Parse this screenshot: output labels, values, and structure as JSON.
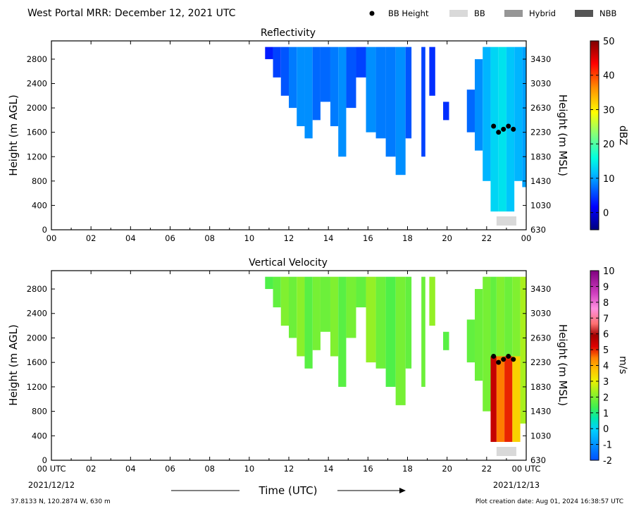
{
  "header": {
    "title": "West Portal MRR:  December 12, 2021 UTC"
  },
  "legend": [
    {
      "label": "BB Height",
      "kind": "dot",
      "color": "#000000"
    },
    {
      "label": "BB",
      "kind": "box",
      "color": "#d9d9d9"
    },
    {
      "label": "Hybrid",
      "kind": "box",
      "color": "#969696"
    },
    {
      "label": "NBB",
      "kind": "box",
      "color": "#555555"
    }
  ],
  "footer": {
    "location": "37.8133 N, 120.2874 W, 630 m",
    "creation": "Plot creation date: Aug 01, 2024 16:38:57 UTC",
    "time_axis": "Time (UTC)",
    "start_date": "2021/12/12",
    "end_date": "2021/12/13"
  },
  "chart_data": [
    {
      "type": "heatmap",
      "title": "Reflectivity",
      "ylabel": "Height (m AGL)",
      "y2label": "Height (m MSL)",
      "xlim": [
        0,
        24
      ],
      "ylim": [
        0,
        3100
      ],
      "x_ticks": [
        "00",
        "02",
        "04",
        "06",
        "08",
        "10",
        "12",
        "14",
        "16",
        "18",
        "20",
        "22",
        "00"
      ],
      "y_ticks": [
        0,
        400,
        800,
        1200,
        1600,
        2000,
        2400,
        2800
      ],
      "y2_ticks": [
        630,
        1030,
        1430,
        1830,
        2230,
        2630,
        3030,
        3430
      ],
      "colorbar": {
        "label": "dBZ",
        "min": -5,
        "max": 50,
        "ticks": [
          0,
          10,
          20,
          30,
          40,
          50
        ],
        "colormap": "jet"
      },
      "bb_height_points": [
        {
          "x": 22.35,
          "y": 1700
        },
        {
          "x": 22.6,
          "y": 1600
        },
        {
          "x": 22.85,
          "y": 1650
        },
        {
          "x": 23.1,
          "y": 1700
        },
        {
          "x": 23.35,
          "y": 1650
        }
      ],
      "bb_period": {
        "x": [
          22.5,
          23.5
        ],
        "category": "BB"
      },
      "echo_segments": [
        {
          "x": [
            10.8,
            11.2
          ],
          "ytop": 3000,
          "ybot": 2800,
          "level": 3
        },
        {
          "x": [
            11.2,
            11.6
          ],
          "ytop": 3000,
          "ybot": 2500,
          "level": 5
        },
        {
          "x": [
            11.6,
            12.0
          ],
          "ytop": 3000,
          "ybot": 2200,
          "level": 6
        },
        {
          "x": [
            12.0,
            12.4
          ],
          "ytop": 3000,
          "ybot": 2000,
          "level": 8
        },
        {
          "x": [
            12.4,
            12.8
          ],
          "ytop": 3000,
          "ybot": 1700,
          "level": 9
        },
        {
          "x": [
            12.8,
            13.2
          ],
          "ytop": 3000,
          "ybot": 1500,
          "level": 9
        },
        {
          "x": [
            13.2,
            13.6
          ],
          "ytop": 3000,
          "ybot": 1800,
          "level": 7
        },
        {
          "x": [
            13.6,
            14.1
          ],
          "ytop": 3000,
          "ybot": 2100,
          "level": 7
        },
        {
          "x": [
            14.1,
            14.5
          ],
          "ytop": 3000,
          "ybot": 1700,
          "level": 8
        },
        {
          "x": [
            14.5,
            14.9
          ],
          "ytop": 3000,
          "ybot": 1200,
          "level": 9
        },
        {
          "x": [
            14.9,
            15.4
          ],
          "ytop": 3000,
          "ybot": 2000,
          "level": 6
        },
        {
          "x": [
            15.4,
            15.9
          ],
          "ytop": 3000,
          "ybot": 2500,
          "level": 5
        },
        {
          "x": [
            15.9,
            16.4
          ],
          "ytop": 3000,
          "ybot": 1600,
          "level": 9
        },
        {
          "x": [
            16.4,
            16.9
          ],
          "ytop": 3000,
          "ybot": 1500,
          "level": 8
        },
        {
          "x": [
            16.9,
            17.4
          ],
          "ytop": 3000,
          "ybot": 1200,
          "level": 8
        },
        {
          "x": [
            17.4,
            17.9
          ],
          "ytop": 3000,
          "ybot": 900,
          "level": 9
        },
        {
          "x": [
            17.9,
            18.2
          ],
          "ytop": 3000,
          "ybot": 1500,
          "level": 6
        },
        {
          "x": [
            18.7,
            18.9
          ],
          "ytop": 3000,
          "ybot": 1200,
          "level": 5
        },
        {
          "x": [
            19.1,
            19.4
          ],
          "ytop": 3000,
          "ybot": 2200,
          "level": 4
        },
        {
          "x": [
            19.8,
            20.1
          ],
          "ytop": 2100,
          "ybot": 1800,
          "level": 4
        },
        {
          "x": [
            21.0,
            21.4
          ],
          "ytop": 2300,
          "ybot": 1600,
          "level": 7
        },
        {
          "x": [
            21.4,
            21.8
          ],
          "ytop": 2800,
          "ybot": 1300,
          "level": 9
        },
        {
          "x": [
            21.8,
            22.2
          ],
          "ytop": 3000,
          "ybot": 800,
          "level": 11
        },
        {
          "x": [
            22.2,
            22.6
          ],
          "ytop": 3000,
          "ybot": 300,
          "level": 13
        },
        {
          "x": [
            22.6,
            23.0
          ],
          "ytop": 3000,
          "ybot": 300,
          "level": 14
        },
        {
          "x": [
            23.0,
            23.4
          ],
          "ytop": 3000,
          "ybot": 300,
          "level": 12
        },
        {
          "x": [
            23.4,
            23.8
          ],
          "ytop": 3000,
          "ybot": 800,
          "level": 11
        },
        {
          "x": [
            23.8,
            24.0
          ],
          "ytop": 3000,
          "ybot": 700,
          "level": 10
        }
      ]
    },
    {
      "type": "heatmap",
      "title": "Vertical Velocity",
      "ylabel": "Height (m AGL)",
      "y2label": "Height (m MSL)",
      "xlim": [
        0,
        24
      ],
      "ylim": [
        0,
        3100
      ],
      "x_ticks": [
        "00 UTC",
        "02",
        "04",
        "06",
        "08",
        "10",
        "12",
        "14",
        "16",
        "18",
        "20",
        "22",
        "00 UTC"
      ],
      "y_ticks": [
        0,
        400,
        800,
        1200,
        1600,
        2000,
        2400,
        2800
      ],
      "y2_ticks": [
        630,
        1030,
        1430,
        1830,
        2230,
        2630,
        3030,
        3430
      ],
      "colorbar": {
        "label": "m/s",
        "min": -2,
        "max": 10,
        "ticks": [
          -2,
          -1,
          0,
          1,
          2,
          3,
          4,
          5,
          6,
          7,
          8,
          9,
          10
        ],
        "colormap": "velocity"
      },
      "bb_height_points": [
        {
          "x": 22.35,
          "y": 1700
        },
        {
          "x": 22.6,
          "y": 1600
        },
        {
          "x": 22.85,
          "y": 1650
        },
        {
          "x": 23.1,
          "y": 1700
        },
        {
          "x": 23.35,
          "y": 1650
        }
      ],
      "bb_period": {
        "x": [
          22.5,
          23.5
        ],
        "category": "BB"
      },
      "echo_segments": [
        {
          "x": [
            10.8,
            11.2
          ],
          "ytop": 3000,
          "ybot": 2800,
          "level": 1.5
        },
        {
          "x": [
            11.2,
            11.6
          ],
          "ytop": 3000,
          "ybot": 2500,
          "level": 1.7
        },
        {
          "x": [
            11.6,
            12.0
          ],
          "ytop": 3000,
          "ybot": 2200,
          "level": 2.0
        },
        {
          "x": [
            12.0,
            12.4
          ],
          "ytop": 3000,
          "ybot": 2000,
          "level": 1.8
        },
        {
          "x": [
            12.4,
            12.8
          ],
          "ytop": 3000,
          "ybot": 1700,
          "level": 2.1
        },
        {
          "x": [
            12.8,
            13.2
          ],
          "ytop": 3000,
          "ybot": 1500,
          "level": 1.6
        },
        {
          "x": [
            13.2,
            13.6
          ],
          "ytop": 3000,
          "ybot": 1800,
          "level": 1.9
        },
        {
          "x": [
            13.6,
            14.1
          ],
          "ytop": 3000,
          "ybot": 2100,
          "level": 1.8
        },
        {
          "x": [
            14.1,
            14.5
          ],
          "ytop": 3000,
          "ybot": 1700,
          "level": 2.0
        },
        {
          "x": [
            14.5,
            14.9
          ],
          "ytop": 3000,
          "ybot": 1200,
          "level": 1.6
        },
        {
          "x": [
            14.9,
            15.4
          ],
          "ytop": 3000,
          "ybot": 2000,
          "level": 1.9
        },
        {
          "x": [
            15.4,
            15.9
          ],
          "ytop": 3000,
          "ybot": 2500,
          "level": 1.7
        },
        {
          "x": [
            15.9,
            16.4
          ],
          "ytop": 3000,
          "ybot": 1600,
          "level": 2.2
        },
        {
          "x": [
            16.4,
            16.9
          ],
          "ytop": 3000,
          "ybot": 1500,
          "level": 1.8
        },
        {
          "x": [
            16.9,
            17.4
          ],
          "ytop": 3000,
          "ybot": 1200,
          "level": 1.5
        },
        {
          "x": [
            17.4,
            17.9
          ],
          "ytop": 3000,
          "ybot": 900,
          "level": 1.9
        },
        {
          "x": [
            17.9,
            18.2
          ],
          "ytop": 3000,
          "ybot": 1500,
          "level": 1.7
        },
        {
          "x": [
            18.7,
            18.9
          ],
          "ytop": 3000,
          "ybot": 1200,
          "level": 1.8
        },
        {
          "x": [
            19.1,
            19.4
          ],
          "ytop": 3000,
          "ybot": 2200,
          "level": 2.2
        },
        {
          "x": [
            19.8,
            20.1
          ],
          "ytop": 2100,
          "ybot": 1800,
          "level": 1.6
        },
        {
          "x": [
            21.0,
            21.4
          ],
          "ytop": 2300,
          "ybot": 1600,
          "level": 1.7
        },
        {
          "x": [
            21.4,
            21.8
          ],
          "ytop": 2800,
          "ybot": 1300,
          "level": 1.8
        },
        {
          "x": [
            21.8,
            22.2
          ],
          "ytop": 3000,
          "ybot": 800,
          "level": 1.9
        },
        {
          "x": [
            22.2,
            22.5
          ],
          "ytop": 3000,
          "ybot": 1700,
          "level": 1.7
        },
        {
          "x": [
            22.2,
            22.5
          ],
          "ytop": 1700,
          "ybot": 300,
          "level": 5.5
        },
        {
          "x": [
            22.5,
            22.9
          ],
          "ytop": 3000,
          "ybot": 1700,
          "level": 2.0
        },
        {
          "x": [
            22.5,
            22.9
          ],
          "ytop": 1700,
          "ybot": 300,
          "level": 4.5
        },
        {
          "x": [
            22.9,
            23.3
          ],
          "ytop": 3000,
          "ybot": 1700,
          "level": 1.8
        },
        {
          "x": [
            22.9,
            23.3
          ],
          "ytop": 1700,
          "ybot": 300,
          "level": 5.0
        },
        {
          "x": [
            23.3,
            23.7
          ],
          "ytop": 3000,
          "ybot": 1700,
          "level": 2.0
        },
        {
          "x": [
            23.3,
            23.7
          ],
          "ytop": 1700,
          "ybot": 300,
          "level": 3.5
        },
        {
          "x": [
            23.7,
            24.0
          ],
          "ytop": 3000,
          "ybot": 600,
          "level": 2.4
        }
      ]
    }
  ]
}
